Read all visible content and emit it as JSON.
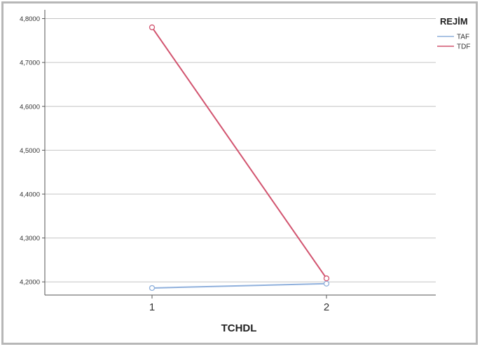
{
  "chart_data": {
    "type": "line",
    "x": [
      "1",
      "2"
    ],
    "xlabel": "TCHDL",
    "ylabel": "",
    "ylim": [
      4.17,
      4.82
    ],
    "yticks": [
      "4,2000",
      "4,3000",
      "4,4000",
      "4,5000",
      "4,6000",
      "4,7000",
      "4,8000"
    ],
    "ytick_values": [
      4.2,
      4.3,
      4.4,
      4.5,
      4.6,
      4.7,
      4.8
    ],
    "grid": "horizontal",
    "legend": {
      "title": "REJİM",
      "placement": "top-right"
    },
    "series": [
      {
        "name": "TAF",
        "color": "#8fb0dc",
        "values": [
          4.186,
          4.196
        ]
      },
      {
        "name": "TDF",
        "color": "#d2546f",
        "values": [
          4.78,
          4.208
        ]
      }
    ]
  }
}
